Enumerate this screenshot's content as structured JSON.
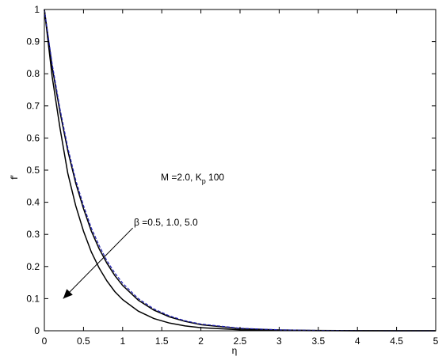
{
  "chart_data": {
    "type": "line",
    "title": "",
    "xlabel": "η",
    "ylabel": "f′",
    "xlim": [
      0,
      5
    ],
    "ylim": [
      0,
      1
    ],
    "xticks": [
      "0",
      "0.5",
      "1",
      "1.5",
      "2",
      "2.5",
      "3",
      "3.5",
      "4",
      "4.5",
      "5"
    ],
    "yticks": [
      "0",
      "0.1",
      "0.2",
      "0.3",
      "0.4",
      "0.5",
      "0.6",
      "0.7",
      "0.8",
      "0.9",
      "1"
    ],
    "grid": false,
    "annotations": {
      "params_prefix": "M =2.0, K",
      "params_sub": "p",
      "params_suffix": " 100",
      "beta": "β =0.5, 1.0, 5.0"
    },
    "series": [
      {
        "style": "solid",
        "color": "#000000",
        "x": [
          0,
          0.1,
          0.2,
          0.3,
          0.4,
          0.5,
          0.6,
          0.7,
          0.8,
          0.9,
          1.0,
          1.2,
          1.4,
          1.6,
          1.8,
          2.0,
          2.5,
          3.0,
          3.5,
          4.0,
          4.5,
          5.0
        ],
        "y": [
          1.0,
          0.79,
          0.63,
          0.49,
          0.39,
          0.31,
          0.245,
          0.195,
          0.155,
          0.122,
          0.097,
          0.061,
          0.038,
          0.024,
          0.015,
          0.0095,
          0.003,
          0.001,
          0.0003,
          0.0001,
          0.0,
          0.0
        ]
      },
      {
        "style": "solid",
        "color": "#000000",
        "x": [
          0,
          0.1,
          0.2,
          0.3,
          0.4,
          0.5,
          0.6,
          0.7,
          0.8,
          0.9,
          1.0,
          1.2,
          1.4,
          1.6,
          1.8,
          2.0,
          2.5,
          3.0,
          3.5,
          4.0,
          4.5,
          5.0
        ],
        "y": [
          1.0,
          0.82,
          0.68,
          0.56,
          0.46,
          0.38,
          0.31,
          0.255,
          0.21,
          0.172,
          0.141,
          0.095,
          0.064,
          0.043,
          0.029,
          0.019,
          0.007,
          0.0025,
          0.001,
          0.0003,
          0.0001,
          0.0
        ]
      },
      {
        "style": "dashed",
        "color": "#1f1fb4",
        "x": [
          0,
          0.1,
          0.2,
          0.3,
          0.4,
          0.5,
          0.6,
          0.7,
          0.8,
          0.9,
          1.0,
          1.2,
          1.4,
          1.6,
          1.8,
          2.0,
          2.5,
          3.0,
          3.5,
          4.0,
          4.5,
          5.0
        ],
        "y": [
          1.0,
          0.83,
          0.69,
          0.57,
          0.47,
          0.39,
          0.32,
          0.265,
          0.218,
          0.18,
          0.148,
          0.1,
          0.068,
          0.046,
          0.031,
          0.021,
          0.008,
          0.003,
          0.001,
          0.0003,
          0.0001,
          0.0
        ]
      }
    ],
    "arrow": {
      "from": [
        1.13,
        0.32
      ],
      "to": [
        0.24,
        0.1
      ]
    }
  }
}
